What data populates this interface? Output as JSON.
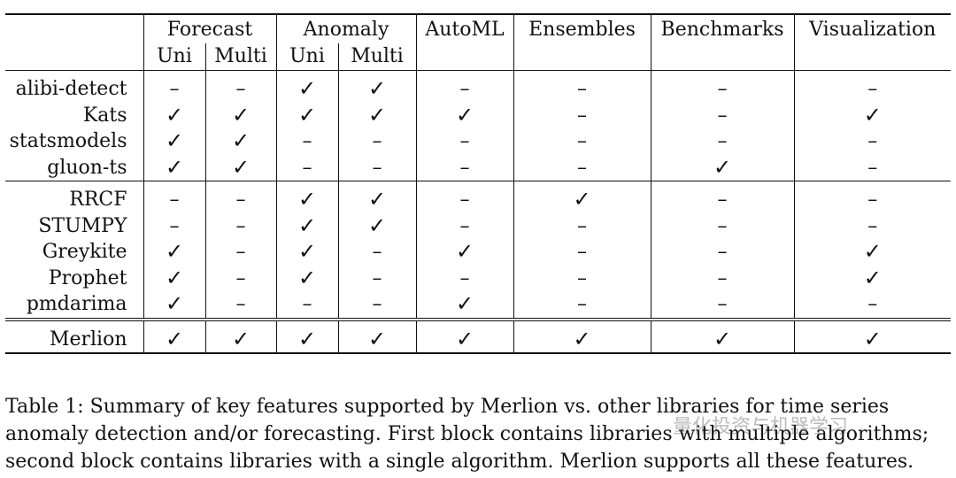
{
  "table": {
    "headers": {
      "forecast": "Forecast",
      "anomaly": "Anomaly",
      "uni": "Uni",
      "multi": "Multi",
      "automl": "AutoML",
      "ensembles": "Ensembles",
      "benchmarks": "Benchmarks",
      "visualization": "Visualization"
    },
    "symbols": {
      "yes": "✓",
      "no": "–"
    },
    "blocks": [
      [
        {
          "name": "alibi-detect",
          "cells": [
            "no",
            "no",
            "yes",
            "yes",
            "no",
            "no",
            "no",
            "no"
          ]
        },
        {
          "name": "Kats",
          "cells": [
            "yes",
            "yes",
            "yes",
            "yes",
            "yes",
            "no",
            "no",
            "yes"
          ]
        },
        {
          "name": "statsmodels",
          "cells": [
            "yes",
            "yes",
            "no",
            "no",
            "no",
            "no",
            "no",
            "no"
          ]
        },
        {
          "name": "gluon-ts",
          "cells": [
            "yes",
            "yes",
            "no",
            "no",
            "no",
            "no",
            "yes",
            "no"
          ]
        }
      ],
      [
        {
          "name": "RRCF",
          "cells": [
            "no",
            "no",
            "yes",
            "yes",
            "no",
            "yes",
            "no",
            "no"
          ]
        },
        {
          "name": "STUMPY",
          "cells": [
            "no",
            "no",
            "yes",
            "yes",
            "no",
            "no",
            "no",
            "no"
          ]
        },
        {
          "name": "Greykite",
          "cells": [
            "yes",
            "no",
            "yes",
            "no",
            "yes",
            "no",
            "no",
            "yes"
          ]
        },
        {
          "name": "Prophet",
          "cells": [
            "yes",
            "no",
            "yes",
            "no",
            "no",
            "no",
            "no",
            "yes"
          ]
        },
        {
          "name": "pmdarima",
          "cells": [
            "yes",
            "no",
            "no",
            "no",
            "yes",
            "no",
            "no",
            "no"
          ]
        }
      ],
      [
        {
          "name": "Merlion",
          "cells": [
            "yes",
            "yes",
            "yes",
            "yes",
            "yes",
            "yes",
            "yes",
            "yes"
          ]
        }
      ]
    ]
  },
  "caption": {
    "lines": [
      "Table 1: Summary of key features supported by Merlion vs. other libraries for time series",
      "anomaly detection and/or forecasting. First block contains libraries with multiple algorithms;",
      "second block contains libraries with a single algorithm. Merlion supports all these features."
    ]
  },
  "watermark": {
    "text": "量化投资与机器学习"
  }
}
